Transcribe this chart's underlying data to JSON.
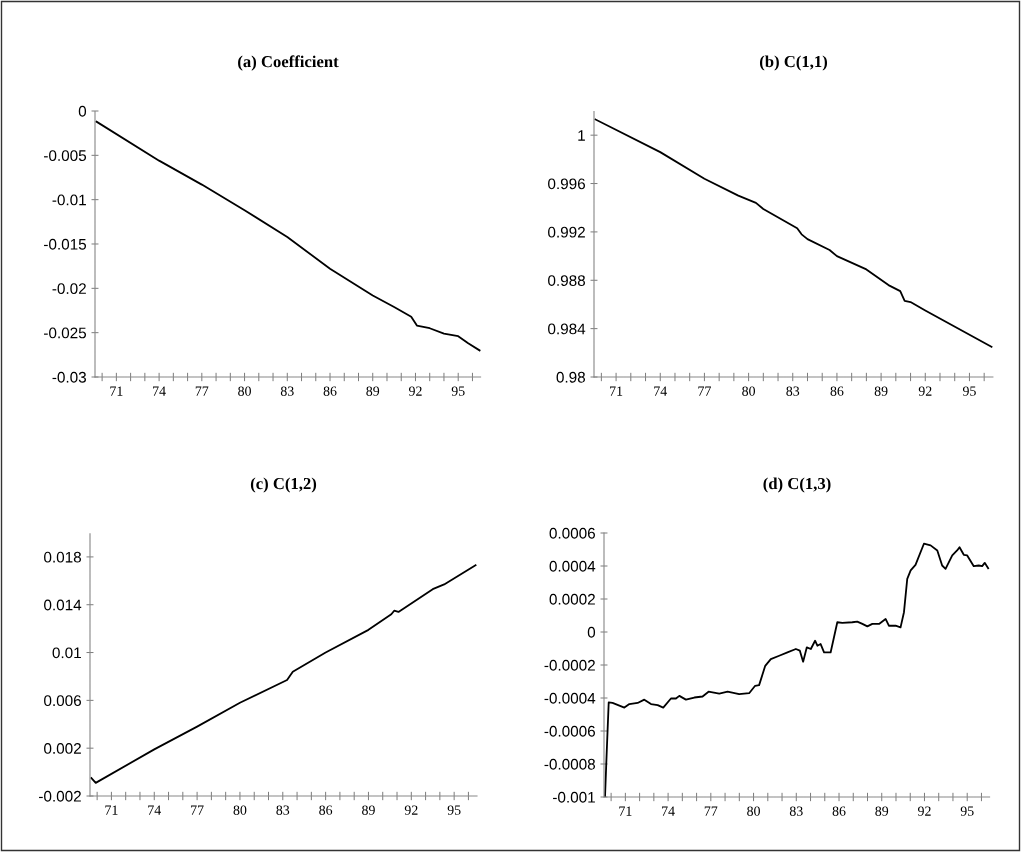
{
  "chart_data": [
    {
      "type": "line",
      "title": "(a) Coefficient",
      "xlim": [
        69.5,
        96.6
      ],
      "ylim": [
        -0.03,
        0
      ],
      "yticks": [
        -0.03,
        -0.025,
        -0.02,
        -0.015,
        -0.01,
        -0.005,
        0
      ],
      "xticks": [
        {
          "value": 70,
          "label": null
        },
        71,
        {
          "value": 72,
          "label": null
        },
        {
          "value": 73,
          "label": null
        },
        74,
        {
          "value": 75,
          "label": null
        },
        {
          "value": 76,
          "label": null
        },
        77,
        {
          "value": 78,
          "label": null
        },
        {
          "value": 79,
          "label": null
        },
        80,
        {
          "value": 81,
          "label": null
        },
        {
          "value": 82,
          "label": null
        },
        83,
        {
          "value": 84,
          "label": null
        },
        {
          "value": 85,
          "label": null
        },
        86,
        {
          "value": 87,
          "label": null
        },
        {
          "value": 88,
          "label": null
        },
        89,
        {
          "value": 90,
          "label": null
        },
        {
          "value": 91,
          "label": null
        },
        92,
        {
          "value": 93,
          "label": null
        },
        {
          "value": 94,
          "label": null
        },
        95,
        {
          "value": 96,
          "label": null
        }
      ],
      "x": [
        69.6,
        74,
        77,
        80,
        83,
        86,
        89,
        90.5,
        91.7,
        92.1,
        93,
        94,
        95,
        95.7,
        96.5
      ],
      "series": [
        {
          "color": "#000000",
          "values": [
            -0.0012,
            -0.0056,
            -0.0083,
            -0.0112,
            -0.0142,
            -0.0178,
            -0.0208,
            -0.0221,
            -0.0232,
            -0.0242,
            -0.0245,
            -0.0251,
            -0.0254,
            -0.0262,
            -0.027
          ]
        }
      ]
    },
    {
      "type": "line",
      "title": "(b) C(1,1)",
      "xlim": [
        69.5,
        96.6
      ],
      "ylim": [
        0.98,
        1.002
      ],
      "yticks": [
        0.98,
        0.984,
        0.988,
        0.992,
        0.996,
        1
      ],
      "xticks": [
        {
          "value": 70,
          "label": null
        },
        71,
        {
          "value": 72,
          "label": null
        },
        {
          "value": 73,
          "label": null
        },
        74,
        {
          "value": 75,
          "label": null
        },
        {
          "value": 76,
          "label": null
        },
        77,
        {
          "value": 78,
          "label": null
        },
        {
          "value": 79,
          "label": null
        },
        80,
        {
          "value": 81,
          "label": null
        },
        {
          "value": 82,
          "label": null
        },
        83,
        {
          "value": 84,
          "label": null
        },
        {
          "value": 85,
          "label": null
        },
        86,
        {
          "value": 87,
          "label": null
        },
        {
          "value": 88,
          "label": null
        },
        89,
        {
          "value": 90,
          "label": null
        },
        {
          "value": 91,
          "label": null
        },
        92,
        {
          "value": 93,
          "label": null
        },
        {
          "value": 94,
          "label": null
        },
        95,
        {
          "value": 96,
          "label": null
        }
      ],
      "x": [
        69.6,
        74,
        77,
        79.3,
        80.5,
        81,
        83.3,
        83.6,
        84,
        85.5,
        86,
        88,
        89.5,
        90.3,
        90.6,
        91,
        92,
        96.5
      ],
      "series": [
        {
          "color": "#000000",
          "values": [
            1.0013,
            0.9986,
            0.9964,
            0.995,
            0.9944,
            0.9939,
            0.9923,
            0.9918,
            0.9914,
            0.9905,
            0.99,
            0.9889,
            0.9876,
            0.9871,
            0.9863,
            0.9862,
            0.9855,
            0.9825
          ]
        }
      ]
    },
    {
      "type": "line",
      "title": "(c) C(1,2)",
      "xlim": [
        69.5,
        96.6
      ],
      "ylim": [
        -0.002,
        0.02
      ],
      "yticks": [
        -0.002,
        0.002,
        0.006,
        0.01,
        0.014,
        0.018
      ],
      "xticks": [
        {
          "value": 70,
          "label": null
        },
        71,
        {
          "value": 72,
          "label": null
        },
        {
          "value": 73,
          "label": null
        },
        74,
        {
          "value": 75,
          "label": null
        },
        {
          "value": 76,
          "label": null
        },
        77,
        {
          "value": 78,
          "label": null
        },
        {
          "value": 79,
          "label": null
        },
        80,
        {
          "value": 81,
          "label": null
        },
        {
          "value": 82,
          "label": null
        },
        83,
        {
          "value": 84,
          "label": null
        },
        {
          "value": 85,
          "label": null
        },
        86,
        {
          "value": 87,
          "label": null
        },
        {
          "value": 88,
          "label": null
        },
        89,
        {
          "value": 90,
          "label": null
        },
        {
          "value": 91,
          "label": null
        },
        92,
        {
          "value": 93,
          "label": null
        },
        {
          "value": 94,
          "label": null
        },
        95,
        {
          "value": 96,
          "label": null
        }
      ],
      "x": [
        69.6,
        69.9,
        74,
        77,
        80,
        83.3,
        83.7,
        86,
        89,
        90.6,
        90.8,
        91.1,
        93.5,
        94.3,
        96.5
      ],
      "series": [
        {
          "color": "#000000",
          "values": [
            -0.0005,
            -0.0009,
            0.0019,
            0.0038,
            0.0058,
            0.0077,
            0.0084,
            0.01,
            0.0119,
            0.0132,
            0.0135,
            0.0134,
            0.0153,
            0.0157,
            0.0173
          ]
        }
      ]
    },
    {
      "type": "line",
      "title": "(d) C(1,3)",
      "xlim": [
        69.5,
        96.6
      ],
      "ylim": [
        -0.001,
        0.0006
      ],
      "yticks": [
        -0.001,
        -0.0008,
        -0.0006,
        -0.0004,
        -0.0002,
        0,
        0.0002,
        0.0004,
        0.0006
      ],
      "xticks": [
        {
          "value": 70,
          "label": null
        },
        71,
        {
          "value": 72,
          "label": null
        },
        {
          "value": 73,
          "label": null
        },
        74,
        {
          "value": 75,
          "label": null
        },
        {
          "value": 76,
          "label": null
        },
        77,
        {
          "value": 78,
          "label": null
        },
        {
          "value": 79,
          "label": null
        },
        80,
        {
          "value": 81,
          "label": null
        },
        {
          "value": 82,
          "label": null
        },
        83,
        {
          "value": 84,
          "label": null
        },
        {
          "value": 85,
          "label": null
        },
        86,
        {
          "value": 87,
          "label": null
        },
        {
          "value": 88,
          "label": null
        },
        89,
        {
          "value": 90,
          "label": null
        },
        {
          "value": 91,
          "label": null
        },
        92,
        {
          "value": 93,
          "label": null
        },
        {
          "value": 94,
          "label": null
        },
        95,
        {
          "value": 96,
          "label": null
        }
      ],
      "x": [
        69.57,
        69.69,
        69.83,
        70.1,
        70.93,
        71.28,
        71.86,
        72.33,
        72.8,
        73.27,
        73.66,
        74.2,
        74.55,
        74.79,
        75.25,
        75.84,
        76.42,
        76.84,
        77.59,
        78.18,
        78.99,
        79.69,
        80.11,
        80.39,
        80.82,
        81.21,
        81.8,
        82.38,
        82.97,
        83.25,
        83.48,
        83.74,
        84.02,
        84.32,
        84.48,
        84.71,
        84.95,
        85.41,
        85.88,
        86.23,
        86.93,
        87.28,
        87.64,
        87.99,
        88.34,
        88.81,
        89.27,
        89.5,
        89.97,
        90.32,
        90.56,
        90.79,
        91.03,
        91.37,
        91.96,
        92.43,
        92.9,
        93.24,
        93.48,
        93.95,
        94.29,
        94.46,
        94.76,
        95.0,
        95.46,
        95.81,
        96.05,
        96.23,
        96.47
      ],
      "series": [
        {
          "color": "#000000",
          "values": [
            -0.001,
            -0.00073,
            -0.000427,
            -0.00043,
            -0.000458,
            -0.000437,
            -0.00043,
            -0.00041,
            -0.000437,
            -0.000443,
            -0.000458,
            -0.000403,
            -0.000403,
            -0.000387,
            -0.00041,
            -0.000397,
            -0.000391,
            -0.000362,
            -0.000373,
            -0.000362,
            -0.000377,
            -0.000371,
            -0.000326,
            -0.000322,
            -0.000205,
            -0.000164,
            -0.000144,
            -0.000124,
            -0.000103,
            -0.000113,
            -0.00018,
            -9.3e-05,
            -0.000103,
            -5.3e-05,
            -8.3e-05,
            -7.3e-05,
            -0.000124,
            -0.000124,
            5.9e-05,
            5.5e-05,
            5.9e-05,
            6.3e-05,
            4.9e-05,
            3.4e-05,
            4.9e-05,
            4.9e-05,
            7.9e-05,
            3.8e-05,
            3.8e-05,
            2.8e-05,
            0.00012,
            0.000322,
            0.000373,
            0.000407,
            0.000535,
            0.000525,
            0.000494,
            0.000403,
            0.000383,
            0.000464,
            0.000494,
            0.000514,
            0.000468,
            0.000464,
            0.000399,
            0.000403,
            0.000399,
            0.000419,
            0.000387
          ]
        }
      ]
    }
  ]
}
